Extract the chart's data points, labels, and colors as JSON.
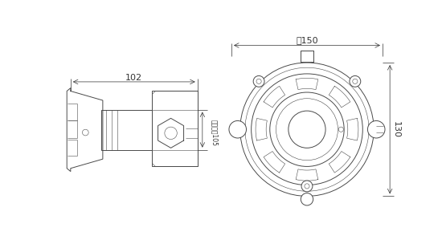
{
  "bg_color": "#ffffff",
  "line_color": "#4a4a4a",
  "dim_color": "#333333",
  "thin_lw": 0.4,
  "med_lw": 0.7,
  "thick_lw": 1.0,
  "dim_lw": 0.5,
  "dim_102": "102",
  "dim_105": "安装尺寸105",
  "dim_150": "约150",
  "dim_130": "130"
}
